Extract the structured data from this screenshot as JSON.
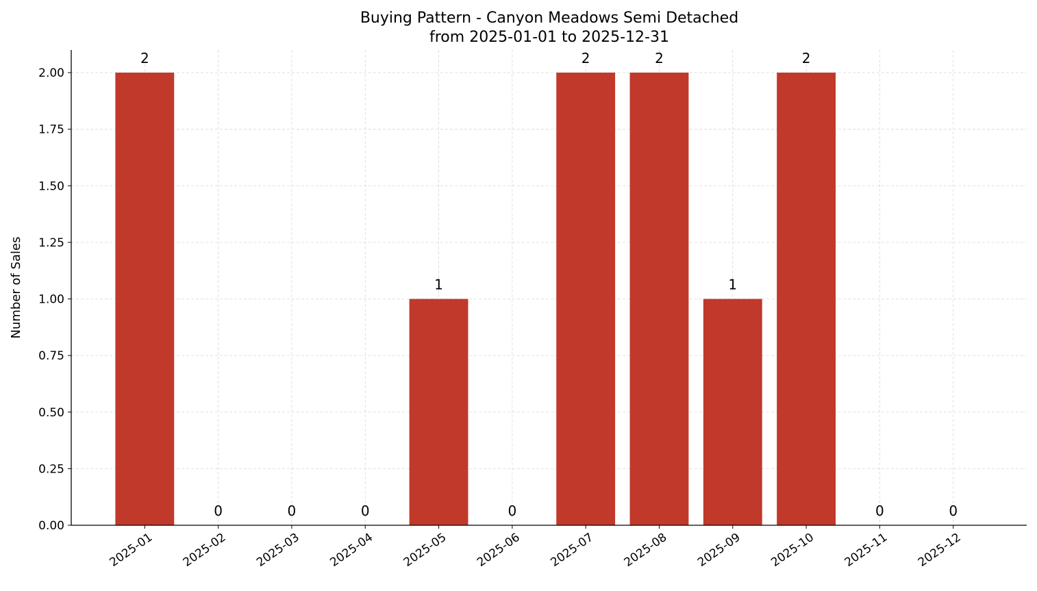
{
  "chart_data": {
    "type": "bar",
    "title": "Buying Pattern - Canyon Meadows Semi Detached",
    "subtitle": "from 2025-01-01 to 2025-12-31",
    "y_label": "Number of Sales",
    "categories": [
      "2025-01",
      "2025-02",
      "2025-03",
      "2025-04",
      "2025-05",
      "2025-06",
      "2025-07",
      "2025-08",
      "2025-09",
      "2025-10",
      "2025-11",
      "2025-12"
    ],
    "values": [
      2,
      0,
      0,
      0,
      1,
      0,
      2,
      2,
      1,
      2,
      0,
      0
    ],
    "color": "#c0392b",
    "ylim": [
      0,
      2.1
    ],
    "yticks": [
      {
        "value": 0,
        "label": "0.00"
      },
      {
        "value": 0.25,
        "label": "0.25"
      },
      {
        "value": 0.5,
        "label": "0.50"
      },
      {
        "value": 0.75,
        "label": "0.75"
      },
      {
        "value": 1,
        "label": "1.00"
      },
      {
        "value": 1.25,
        "label": "1.25"
      },
      {
        "value": 1.5,
        "label": "1.50"
      },
      {
        "value": 1.75,
        "label": "1.75"
      },
      {
        "value": 2,
        "label": "2.00"
      }
    ],
    "grid": true
  }
}
